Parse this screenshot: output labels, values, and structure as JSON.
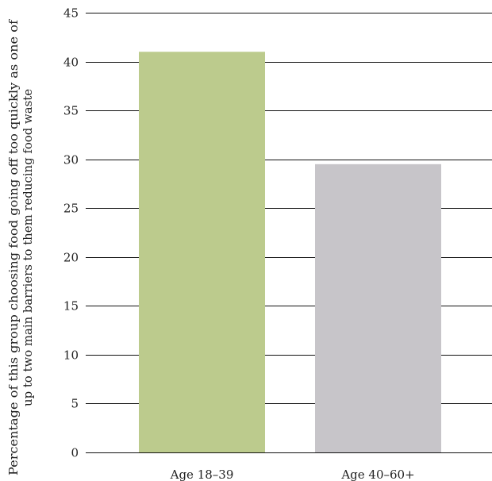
{
  "chart_data": {
    "type": "bar",
    "categories": [
      "Age 18–39",
      "Age 40–60+"
    ],
    "values": [
      41,
      29.5
    ],
    "colors": [
      "#bccb8d",
      "#c7c5c9"
    ],
    "ylabel_lines": [
      "Percentage of this group choosing food going off too quickly as one of",
      "up to two main barriers to them reducing food waste"
    ],
    "ylim": [
      0,
      45
    ],
    "yticks": [
      0,
      5,
      10,
      15,
      20,
      25,
      30,
      35,
      40,
      45
    ],
    "grid": true
  }
}
